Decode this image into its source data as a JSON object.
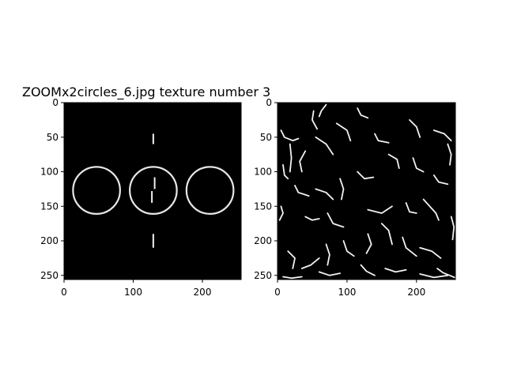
{
  "chart_data": {
    "type": "image",
    "title": "ZOOMx2circles_6.jpg texture number 3",
    "panels": [
      {
        "xlim": [
          0,
          256
        ],
        "ylim": [
          256,
          0
        ],
        "xticks": [
          0,
          100,
          200
        ],
        "yticks": [
          0,
          50,
          100,
          150,
          200,
          250
        ],
        "circles": [
          {
            "cx": 47,
            "cy": 127,
            "r": 34
          },
          {
            "cx": 129,
            "cy": 127,
            "r": 34
          },
          {
            "cx": 211,
            "cy": 127,
            "r": 34
          }
        ],
        "lines": [
          {
            "x1": 129,
            "y1": 45,
            "x2": 129,
            "y2": 60
          },
          {
            "x1": 129,
            "y1": 190,
            "x2": 129,
            "y2": 210
          },
          {
            "x1": 131,
            "y1": 108,
            "x2": 131,
            "y2": 125
          },
          {
            "x1": 127,
            "y1": 128,
            "x2": 127,
            "y2": 145
          }
        ]
      },
      {
        "xlim": [
          0,
          256
        ],
        "ylim": [
          256,
          0
        ],
        "xticks": [
          0,
          100,
          200
        ],
        "yticks": [
          0,
          50,
          100,
          150,
          200,
          250
        ],
        "strokes": [
          [
            [
              5,
              40
            ],
            [
              10,
              50
            ],
            [
              22,
              55
            ],
            [
              30,
              52
            ]
          ],
          [
            [
              70,
              3
            ],
            [
              63,
              12
            ],
            [
              60,
              20
            ]
          ],
          [
            [
              52,
              12
            ],
            [
              50,
              25
            ],
            [
              57,
              38
            ]
          ],
          [
            [
              8,
              90
            ],
            [
              10,
              105
            ],
            [
              15,
              110
            ]
          ],
          [
            [
              18,
              60
            ],
            [
              20,
              80
            ],
            [
              18,
              100
            ]
          ],
          [
            [
              40,
              70
            ],
            [
              32,
              85
            ],
            [
              35,
              100
            ]
          ],
          [
            [
              55,
              50
            ],
            [
              70,
              60
            ],
            [
              80,
              75
            ]
          ],
          [
            [
              85,
              30
            ],
            [
              100,
              40
            ],
            [
              105,
              55
            ]
          ],
          [
            [
              115,
              8
            ],
            [
              120,
              18
            ],
            [
              130,
              22
            ]
          ],
          [
            [
              140,
              45
            ],
            [
              145,
              55
            ],
            [
              160,
              58
            ]
          ],
          [
            [
              190,
              25
            ],
            [
              200,
              35
            ],
            [
              205,
              50
            ]
          ],
          [
            [
              225,
              40
            ],
            [
              240,
              45
            ],
            [
              250,
              55
            ]
          ],
          [
            [
              245,
              60
            ],
            [
              250,
              75
            ],
            [
              248,
              90
            ]
          ],
          [
            [
              25,
              120
            ],
            [
              30,
              130
            ],
            [
              45,
              135
            ]
          ],
          [
            [
              55,
              125
            ],
            [
              70,
              130
            ],
            [
              80,
              140
            ]
          ],
          [
            [
              90,
              110
            ],
            [
              95,
              125
            ],
            [
              92,
              140
            ]
          ],
          [
            [
              115,
              100
            ],
            [
              125,
              110
            ],
            [
              138,
              108
            ]
          ],
          [
            [
              160,
              75
            ],
            [
              172,
              82
            ],
            [
              175,
              95
            ]
          ],
          [
            [
              195,
              80
            ],
            [
              200,
              95
            ],
            [
              210,
              100
            ]
          ],
          [
            [
              225,
              105
            ],
            [
              232,
              115
            ],
            [
              245,
              118
            ]
          ],
          [
            [
              5,
              150
            ],
            [
              8,
              160
            ],
            [
              3,
              170
            ]
          ],
          [
            [
              40,
              165
            ],
            [
              50,
              170
            ],
            [
              60,
              168
            ]
          ],
          [
            [
              72,
              160
            ],
            [
              80,
              175
            ],
            [
              95,
              180
            ]
          ],
          [
            [
              130,
              155
            ],
            [
              150,
              160
            ],
            [
              165,
              150
            ]
          ],
          [
            [
              185,
              145
            ],
            [
              190,
              158
            ],
            [
              200,
              160
            ]
          ],
          [
            [
              210,
              140
            ],
            [
              228,
              160
            ],
            [
              232,
              170
            ]
          ],
          [
            [
              250,
              165
            ],
            [
              254,
              180
            ],
            [
              252,
              198
            ]
          ],
          [
            [
              15,
              215
            ],
            [
              25,
              225
            ],
            [
              22,
              240
            ]
          ],
          [
            [
              35,
              240
            ],
            [
              48,
              235
            ],
            [
              60,
              225
            ]
          ],
          [
            [
              70,
              205
            ],
            [
              75,
              220
            ],
            [
              72,
              235
            ]
          ],
          [
            [
              95,
              200
            ],
            [
              100,
              215
            ],
            [
              110,
              222
            ]
          ],
          [
            [
              130,
              190
            ],
            [
              135,
              205
            ],
            [
              128,
              218
            ]
          ],
          [
            [
              150,
              175
            ],
            [
              160,
              185
            ],
            [
              165,
              205
            ]
          ],
          [
            [
              180,
              195
            ],
            [
              185,
              210
            ],
            [
              200,
              222
            ]
          ],
          [
            [
              205,
              210
            ],
            [
              222,
              215
            ],
            [
              235,
              225
            ]
          ],
          [
            [
              60,
              245
            ],
            [
              75,
              250
            ],
            [
              90,
              247
            ]
          ],
          [
            [
              155,
              240
            ],
            [
              170,
              245
            ],
            [
              185,
              242
            ]
          ],
          [
            [
              205,
              248
            ],
            [
              225,
              253
            ],
            [
              245,
              250
            ]
          ],
          [
            [
              230,
              240
            ],
            [
              238,
              246
            ],
            [
              255,
              253
            ]
          ],
          [
            [
              120,
              235
            ],
            [
              128,
              244
            ],
            [
              140,
              250
            ]
          ],
          [
            [
              8,
              252
            ],
            [
              20,
              254
            ],
            [
              35,
              252
            ]
          ]
        ]
      }
    ]
  }
}
